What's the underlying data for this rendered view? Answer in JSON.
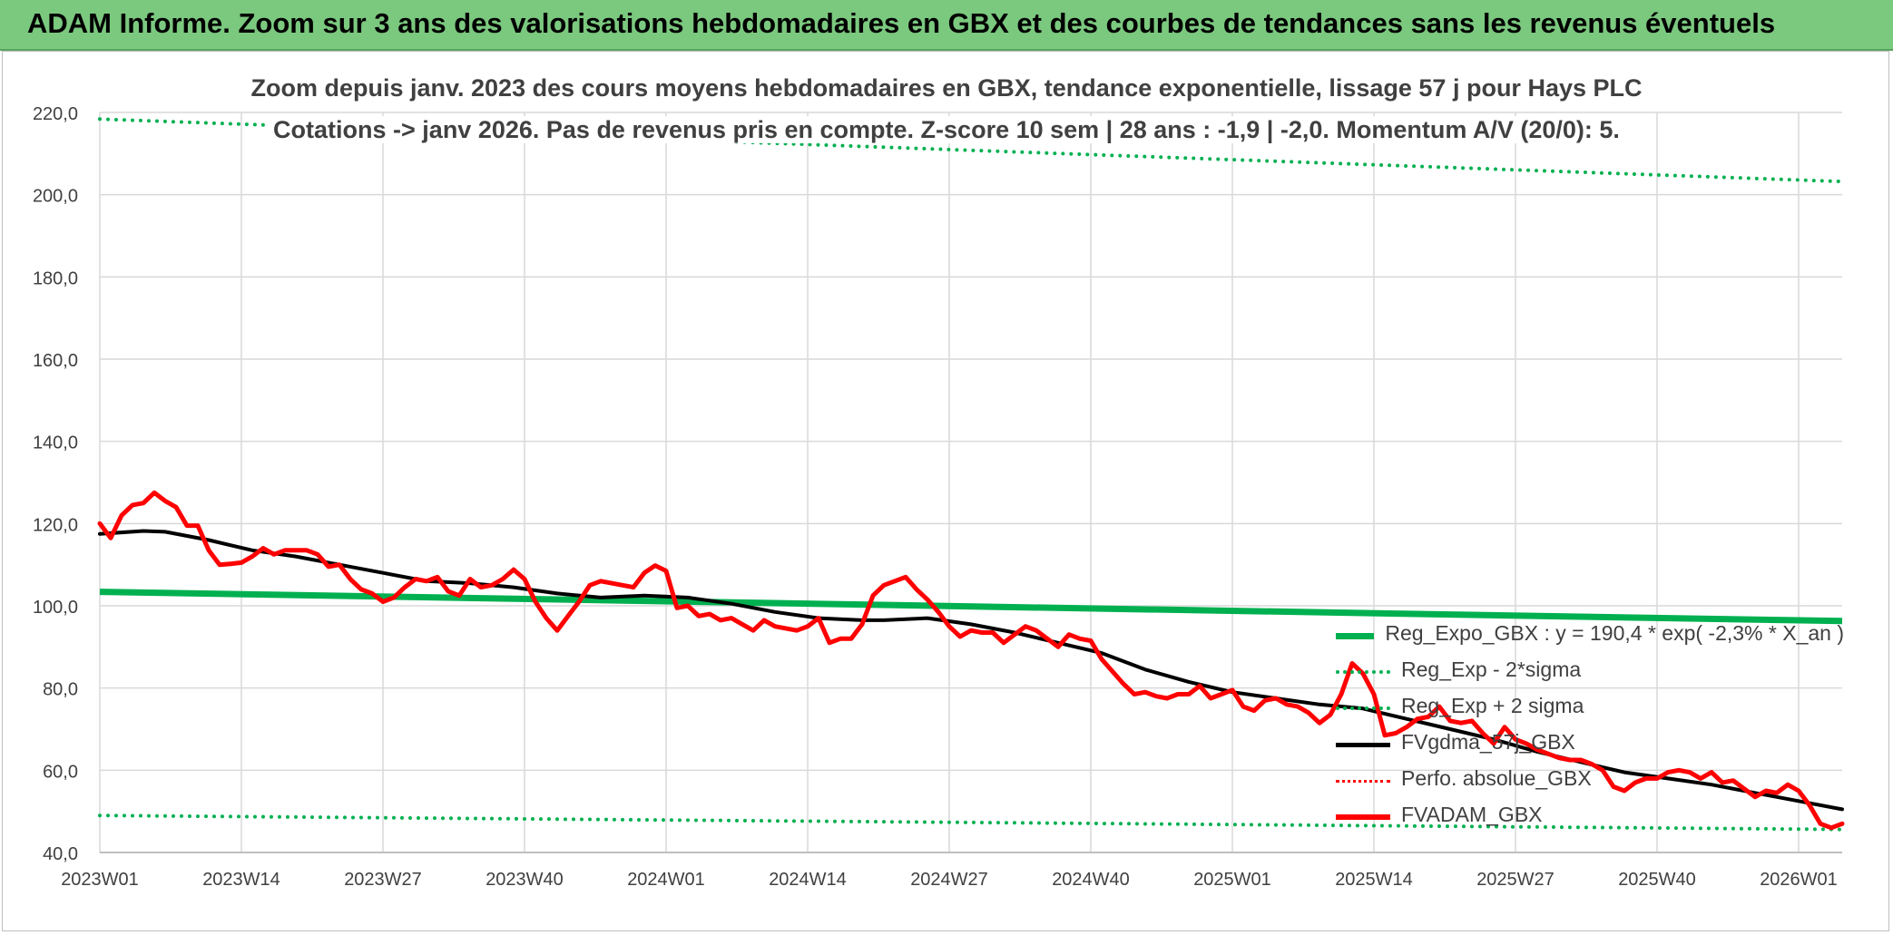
{
  "header": {
    "title": "ADAM Informe. Zoom sur 3 ans des valorisations hebdomadaires en GBX et des courbes de tendances sans les revenus éventuels"
  },
  "colors": {
    "banner": "#7bc87f",
    "reg_expo": "#00b050",
    "fvgdma": "#000000",
    "fvadam": "#ff0000",
    "grid": "#d9d9d9",
    "text": "#404040"
  },
  "chart_data": {
    "type": "line",
    "title_line1": "Zoom depuis janv. 2023 des cours moyens hebdomadaires en GBX, tendance exponentielle, lissage 57 j pour Hays PLC",
    "title_line2": "Cotations -> janv 2026. Pas de revenus pris en compte. Z-score 10 sem | 28 ans : -1,9 | -2,0. Momentum A/V (20/0): 5.",
    "xlabel": "",
    "ylabel": "",
    "ylim": [
      40,
      220
    ],
    "y_ticks": [
      40,
      60,
      80,
      100,
      120,
      140,
      160,
      180,
      200,
      220
    ],
    "y_tick_labels": [
      "40,0",
      "60,0",
      "80,0",
      "100,0",
      "120,0",
      "140,0",
      "160,0",
      "180,0",
      "200,0",
      "220,0"
    ],
    "x_range": [
      0,
      160
    ],
    "x_ticks": [
      0,
      13,
      26,
      39,
      52,
      65,
      78,
      91,
      104,
      117,
      130,
      143,
      156
    ],
    "x_tick_labels": [
      "2023W01",
      "2023W14",
      "2023W27",
      "2023W40",
      "2024W01",
      "2024W14",
      "2024W27",
      "2024W40",
      "2025W01",
      "2025W14",
      "2025W27",
      "2025W40",
      "2026W01"
    ],
    "grid": true,
    "legend_position": "bottom-right",
    "series": [
      {
        "name": "Reg_Expo_GBX : y = 190,4 * exp( -2,3% *  X_an )",
        "style": "solid-green-thick",
        "x": [
          0,
          160
        ],
        "values": [
          103.4,
          96.3
        ]
      },
      {
        "name": "Reg_Exp - 2*sigma",
        "style": "dotted-green",
        "x": [
          0,
          160
        ],
        "values": [
          49.0,
          45.6
        ]
      },
      {
        "name": "Reg_Exp + 2 sigma",
        "style": "dotted-green",
        "x": [
          0,
          160
        ],
        "values": [
          218.4,
          203.2
        ]
      },
      {
        "name": "FVgdma_57j_GBX",
        "style": "solid-black",
        "x": [
          0,
          4,
          6,
          10,
          14,
          18,
          22,
          26,
          30,
          34,
          38,
          42,
          46,
          50,
          54,
          58,
          62,
          66,
          70,
          72,
          76,
          80,
          84,
          88,
          92,
          96,
          100,
          104,
          108,
          112,
          116,
          120,
          124,
          128,
          132,
          136,
          140,
          144,
          148,
          152,
          156,
          160
        ],
        "values": [
          117.5,
          118.2,
          118.0,
          116.0,
          113.5,
          112.0,
          110.0,
          108.0,
          106.0,
          105.5,
          104.5,
          103.0,
          102.0,
          102.5,
          102.0,
          100.5,
          98.5,
          97.0,
          96.5,
          96.5,
          97.0,
          95.5,
          93.5,
          91.0,
          88.5,
          84.5,
          81.5,
          79.0,
          77.5,
          76.0,
          75.0,
          72.5,
          70.0,
          67.5,
          64.5,
          62.0,
          59.5,
          58.0,
          56.5,
          54.5,
          52.5,
          50.5
        ]
      },
      {
        "name": "Perfo. absolue_GBX",
        "style": "dotted-red",
        "x": [],
        "values": []
      },
      {
        "name": "FVADAM_GBX",
        "style": "solid-red-thick",
        "x": [
          0,
          1,
          2,
          3,
          4,
          5,
          6,
          7,
          8,
          9,
          10,
          11,
          12,
          13,
          14,
          15,
          16,
          17,
          18,
          19,
          20,
          21,
          22,
          23,
          24,
          25,
          26,
          27,
          28,
          29,
          30,
          31,
          32,
          33,
          34,
          35,
          36,
          37,
          38,
          39,
          40,
          41,
          42,
          43,
          44,
          45,
          46,
          47,
          48,
          49,
          50,
          51,
          52,
          53,
          54,
          55,
          56,
          57,
          58,
          59,
          60,
          61,
          62,
          63,
          64,
          65,
          66,
          67,
          68,
          69,
          70,
          71,
          72,
          73,
          74,
          75,
          76,
          77,
          78,
          79,
          80,
          81,
          82,
          83,
          84,
          85,
          86,
          87,
          88,
          89,
          90,
          91,
          92,
          93,
          94,
          95,
          96,
          97,
          98,
          99,
          100,
          101,
          102,
          103,
          104,
          105,
          106,
          107,
          108,
          109,
          110,
          111,
          112,
          113,
          114,
          115,
          116,
          117,
          118,
          119,
          120,
          121,
          122,
          123,
          124,
          125,
          126,
          127,
          128,
          129,
          130,
          131,
          132,
          133,
          134,
          135,
          136,
          137,
          138,
          139,
          140,
          141,
          142,
          143,
          144,
          145,
          146,
          147,
          148,
          149,
          150,
          151,
          152,
          153,
          154,
          155,
          156,
          157,
          158,
          159,
          160
        ],
        "values": [
          120.0,
          116.5,
          122.0,
          124.5,
          125.0,
          127.5,
          125.5,
          124.0,
          119.5,
          119.5,
          113.5,
          110.0,
          110.2,
          110.5,
          112.0,
          114.0,
          112.5,
          113.5,
          113.5,
          113.5,
          112.5,
          109.5,
          110.0,
          106.5,
          104.0,
          103.0,
          101.0,
          102.0,
          104.5,
          106.5,
          106.0,
          107.0,
          103.5,
          102.5,
          106.5,
          104.5,
          105.0,
          106.5,
          108.8,
          106.5,
          101.0,
          97.0,
          94.0,
          97.5,
          101.0,
          105.0,
          106.0,
          105.5,
          105.0,
          104.5,
          108.0,
          109.8,
          108.5,
          99.5,
          100.0,
          97.5,
          98.0,
          96.5,
          97.0,
          95.5,
          94.0,
          96.5,
          95.0,
          94.5,
          94.0,
          95.0,
          97.0,
          91.0,
          92.0,
          92.0,
          95.5,
          102.5,
          105.0,
          106.0,
          107.0,
          104.0,
          101.5,
          98.5,
          95.0,
          92.5,
          94.0,
          93.5,
          93.5,
          91.0,
          93.0,
          95.0,
          94.0,
          92.0,
          90.0,
          93.0,
          92.0,
          91.5,
          87.0,
          84.0,
          81.0,
          78.5,
          79.0,
          78.0,
          77.5,
          78.5,
          78.5,
          80.5,
          77.5,
          78.5,
          79.5,
          75.5,
          74.5,
          77.0,
          77.5,
          76.0,
          75.5,
          74.0,
          71.5,
          73.5,
          78.5,
          86.0,
          83.5,
          78.5,
          68.5,
          69.0,
          70.5,
          72.5,
          73.0,
          75.5,
          72.0,
          71.5,
          72.0,
          69.0,
          66.5,
          70.5,
          67.5,
          66.5,
          65.0,
          64.0,
          63.0,
          62.5,
          62.5,
          61.5,
          60.0,
          56.0,
          55.0,
          57.0,
          58.0,
          58.0,
          59.5,
          60.0,
          59.5,
          58.0,
          59.5,
          57.0,
          57.5,
          55.5,
          53.5,
          55.0,
          54.5,
          56.5,
          55.0,
          51.5,
          47.0,
          46.0,
          47.0
        ]
      }
    ]
  }
}
